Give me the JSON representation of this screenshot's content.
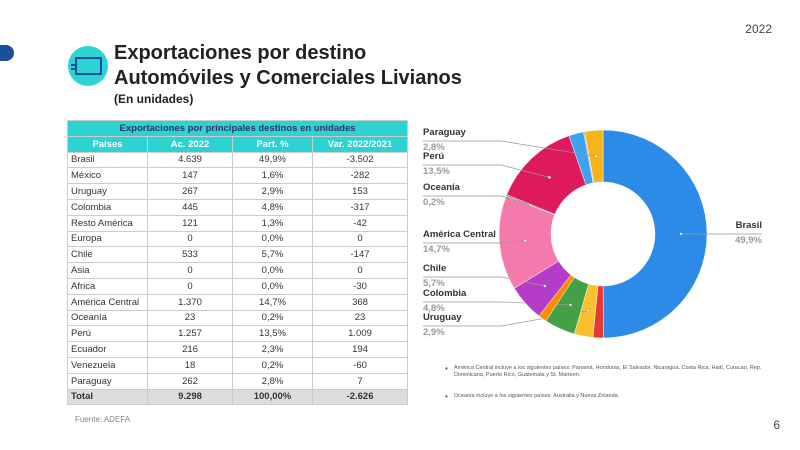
{
  "header": {
    "year": "2022",
    "title_line1": "Exportaciones por destino",
    "title_line2": "Automóviles y Comerciales Livianos",
    "subtitle": "(En unidades)"
  },
  "table": {
    "caption": "Exportaciones por principales destinos en unidades",
    "columns": [
      "Países",
      "Ac. 2022",
      "Part. %",
      "Var. 2022/2021"
    ],
    "rows": [
      [
        "Brasil",
        "4.639",
        "49,9%",
        "-3.502"
      ],
      [
        "México",
        "147",
        "1,6%",
        "-282"
      ],
      [
        "Uruguay",
        "267",
        "2,9%",
        "153"
      ],
      [
        "Colombia",
        "445",
        "4,8%",
        "-317"
      ],
      [
        "Resto América",
        "121",
        "1,3%",
        "-42"
      ],
      [
        "Europa",
        "0",
        "0,0%",
        "0"
      ],
      [
        "Chile",
        "533",
        "5,7%",
        "-147"
      ],
      [
        "Asia",
        "0",
        "0,0%",
        "0"
      ],
      [
        "Africa",
        "0",
        "0,0%",
        "-30"
      ],
      [
        "América Central",
        "1.370",
        "14,7%",
        "368"
      ],
      [
        "Oceanía",
        "23",
        "0,2%",
        "23"
      ],
      [
        "Perú",
        "1.257",
        "13,5%",
        "1.009"
      ],
      [
        "Ecuador",
        "216",
        "2,3%",
        "194"
      ],
      [
        "Venezuela",
        "18",
        "0,2%",
        "-60"
      ],
      [
        "Paraguay",
        "262",
        "2,8%",
        "7"
      ]
    ],
    "total": [
      "Total",
      "9.298",
      "100,00%",
      "-2.626"
    ]
  },
  "chart_data": {
    "type": "pie",
    "donut": true,
    "categories": [
      "Brasil",
      null,
      "Uruguay",
      "Colombia",
      null,
      "Chile",
      "América Central",
      "Oceanía",
      "Perú",
      null,
      null,
      "Paraguay"
    ],
    "values": [
      49.9,
      1.6,
      2.9,
      4.8,
      1.3,
      5.7,
      14.7,
      0.2,
      13.5,
      2.3,
      0.2,
      2.8
    ],
    "value_labels": [
      "49,9%",
      null,
      "2,9%",
      "4,8%",
      null,
      "5,7%",
      "14,7%",
      "0,2%",
      "13,5%",
      null,
      null,
      "2,8%"
    ],
    "colors": [
      "#2b8be6",
      "#e53935",
      "#fbc02d",
      "#43a047",
      "#fb8c00",
      "#b53cc9",
      "#f57aac",
      "#555555",
      "#df1a5c",
      "#3ba3f2",
      "#9e9e9e",
      "#f8b319"
    ]
  },
  "notes": [
    "América Central incluye a los siguientes países: Panamá, Honduras, El Salvador, Nicaragua, Costa Rica, Haití, Curacao, Rep. Dominicana, Puerto Rico, Guatemala y St. Marteen.",
    "Oceanía incluye a los siguientes países: Australia y Nueva Zelanda."
  ],
  "source": "Fuente: ADEFA",
  "page_number": "6"
}
